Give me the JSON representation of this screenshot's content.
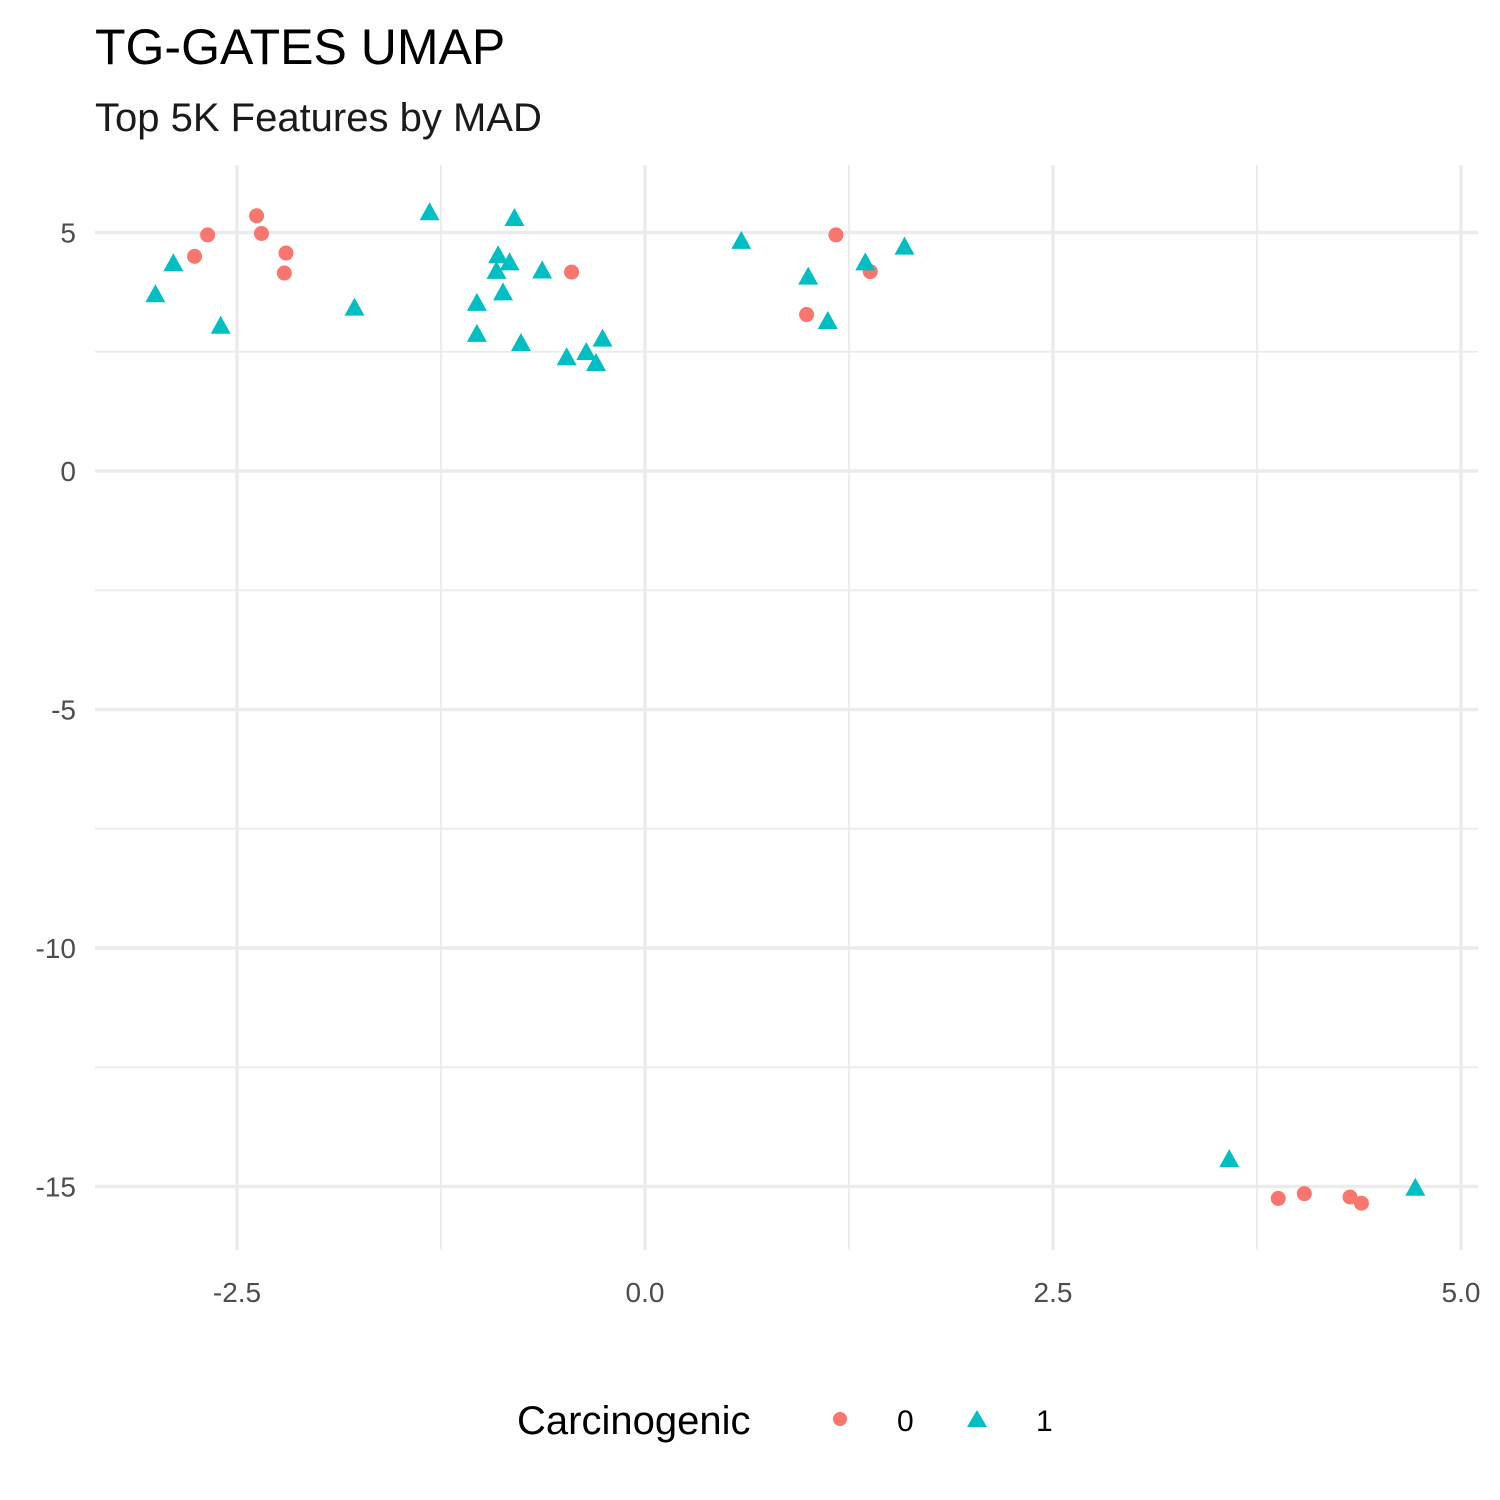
{
  "chart_data": {
    "type": "scatter",
    "title": "TG-GATES UMAP",
    "subtitle": "Top 5K Features by MAD",
    "xlabel": "",
    "ylabel": "",
    "xlim": [
      -3.4,
      5.1
    ],
    "ylim": [
      -16.2,
      6.4
    ],
    "x_ticks": [
      -2.5,
      0.0,
      2.5,
      5.0
    ],
    "x_tick_labels": [
      "-2.5",
      "0.0",
      "2.5",
      "5.0"
    ],
    "y_ticks": [
      -15,
      -10,
      -5,
      0,
      5
    ],
    "y_tick_labels": [
      "-15",
      "-10",
      "-5",
      "0",
      "5"
    ],
    "grid": true,
    "legend": {
      "title": "Carcinogenic",
      "position": "bottom"
    },
    "series": [
      {
        "name": "0",
        "color": "#F8766D",
        "marker": "circle",
        "points": [
          [
            -2.38,
            5.35
          ],
          [
            -2.35,
            4.98
          ],
          [
            -2.2,
            4.57
          ],
          [
            -2.21,
            4.15
          ],
          [
            -2.68,
            4.95
          ],
          [
            -2.76,
            4.5
          ],
          [
            -0.45,
            4.17
          ],
          [
            1.17,
            4.95
          ],
          [
            1.38,
            4.18
          ],
          [
            0.99,
            3.28
          ],
          [
            3.88,
            -15.25
          ],
          [
            4.04,
            -15.15
          ],
          [
            4.32,
            -15.22
          ],
          [
            4.39,
            -15.35
          ]
        ]
      },
      {
        "name": "1",
        "color": "#00BFC4",
        "marker": "triangle",
        "points": [
          [
            -3.0,
            3.68
          ],
          [
            -2.89,
            4.33
          ],
          [
            -2.6,
            3.02
          ],
          [
            -1.78,
            3.4
          ],
          [
            -1.32,
            5.4
          ],
          [
            -1.03,
            3.5
          ],
          [
            -1.03,
            2.85
          ],
          [
            -0.9,
            4.5
          ],
          [
            -0.91,
            4.17
          ],
          [
            -0.87,
            3.72
          ],
          [
            -0.83,
            4.35
          ],
          [
            -0.8,
            5.28
          ],
          [
            -0.76,
            2.66
          ],
          [
            -0.63,
            4.18
          ],
          [
            -0.48,
            2.36
          ],
          [
            -0.36,
            2.47
          ],
          [
            -0.3,
            2.24
          ],
          [
            -0.26,
            2.75
          ],
          [
            0.59,
            4.8
          ],
          [
            1.0,
            4.05
          ],
          [
            1.12,
            3.12
          ],
          [
            1.35,
            4.35
          ],
          [
            1.59,
            4.68
          ],
          [
            3.58,
            -14.45
          ],
          [
            4.72,
            -15.05
          ]
        ]
      }
    ]
  }
}
